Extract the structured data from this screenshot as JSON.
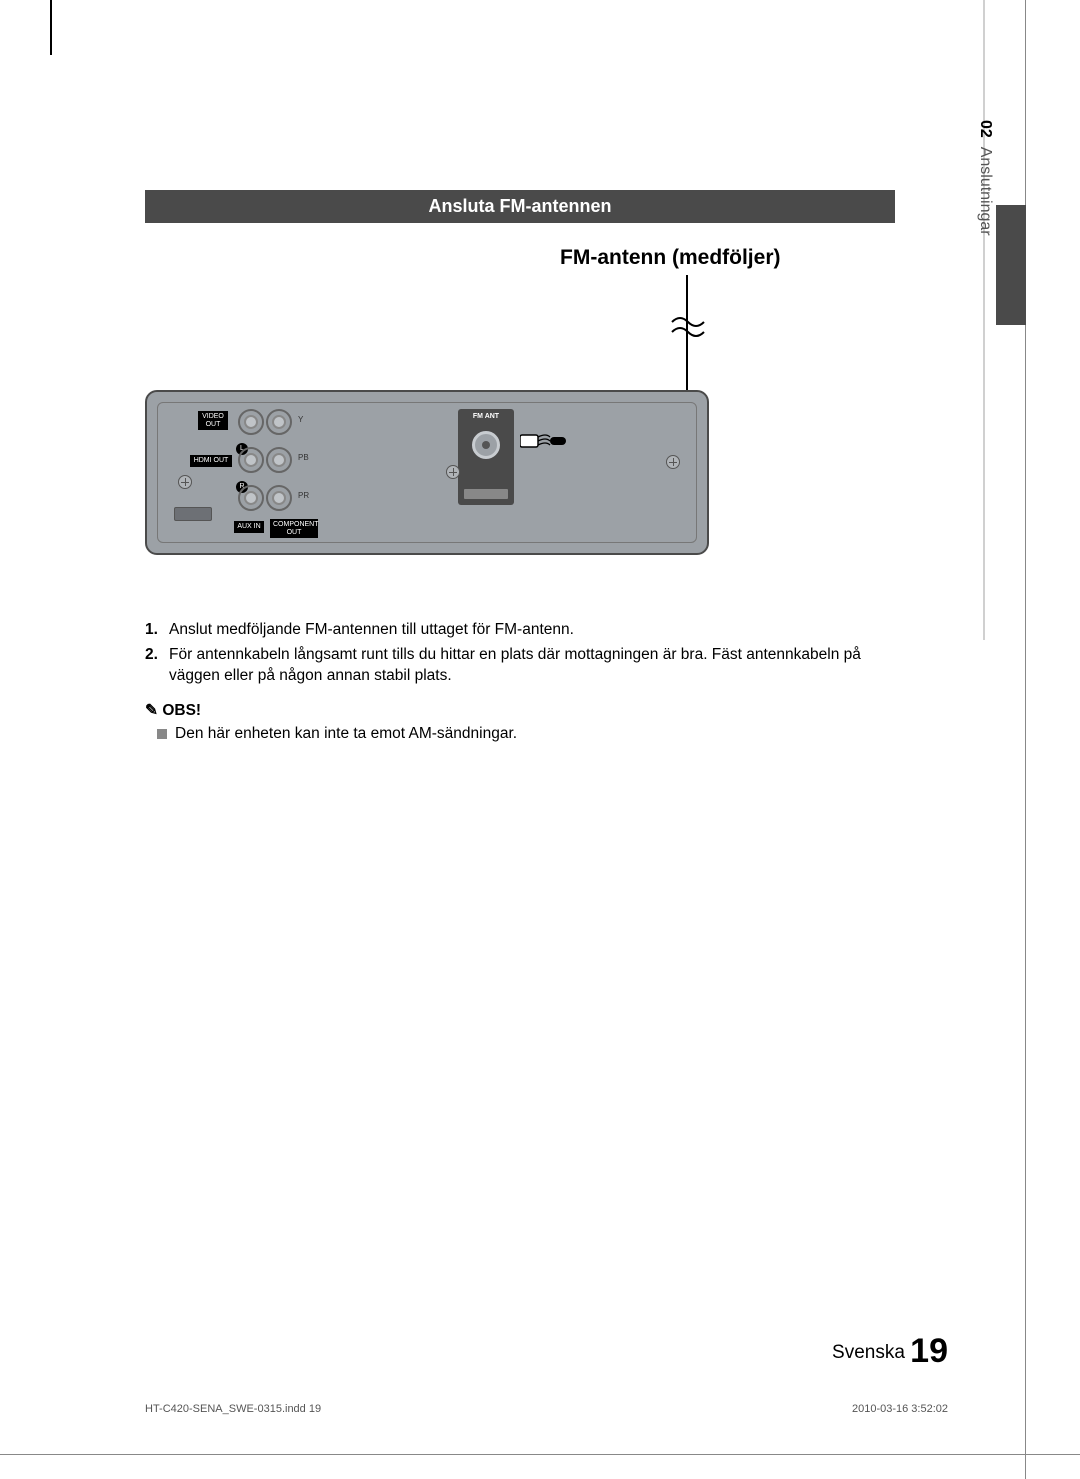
{
  "section": {
    "banner": "Ansluta FM-antennen"
  },
  "callout": {
    "text": "FM-antenn (medföljer)"
  },
  "device": {
    "labels": {
      "video_out": "VIDEO\nOUT",
      "hdmi_out": "HDMI OUT",
      "aux_in": "AUX IN",
      "component_out": "COMPONENT\nOUT",
      "fm_ant": "FM ANT",
      "y": "Y",
      "pb": "PB",
      "pr": "PR",
      "l": "L",
      "r": "R"
    }
  },
  "steps": [
    {
      "n": "1.",
      "t": "Anslut medföljande FM-antennen till uttaget för FM-antenn."
    },
    {
      "n": "2.",
      "t": "För antennkabeln långsamt runt tills du hittar en plats där mottagningen är bra. Fäst antennkabeln på väggen eller på någon annan stabil plats."
    }
  ],
  "note": {
    "head": "OBS!",
    "items": [
      "Den här enheten kan inte ta emot AM-sändningar."
    ]
  },
  "sidetab": {
    "num": "02",
    "label": "Anslutningar"
  },
  "footer": {
    "lang": "Svenska",
    "page": "19"
  },
  "meta": {
    "file": "HT-C420-SENA_SWE-0315.indd   19",
    "stamp": "2010-03-16   3:52:02"
  },
  "colors": {
    "banner_bg": "#4a4a4a",
    "device_bg": "#9ca1a6",
    "text": "#000000"
  }
}
